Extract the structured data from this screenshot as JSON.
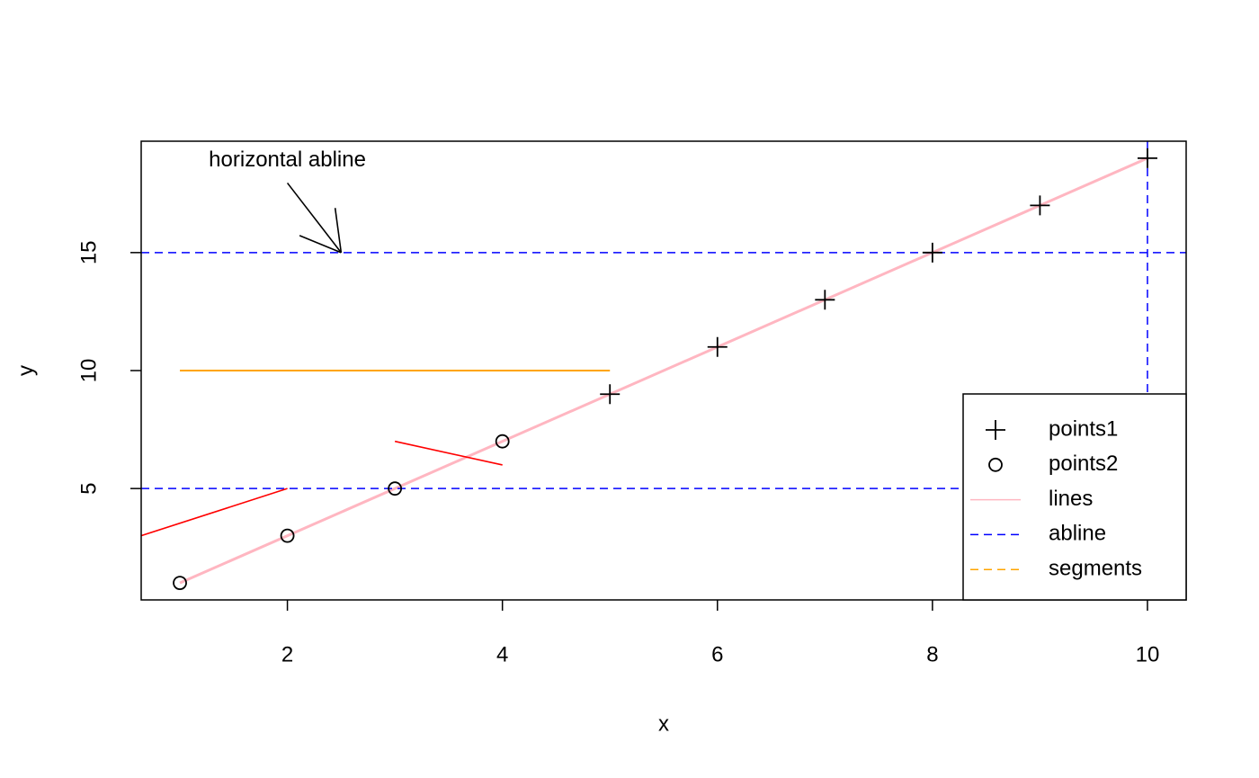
{
  "chart_data": {
    "type": "scatter",
    "x_label": "x",
    "y_label": "y",
    "xlim": [
      0.64,
      10.36
    ],
    "ylim": [
      0.28,
      19.72
    ],
    "xticks": [
      2,
      4,
      6,
      8,
      10
    ],
    "yticks": [
      5,
      10,
      15
    ],
    "legend": "bottomright",
    "series": [
      {
        "name": "points1",
        "color": "#000000",
        "marker": "plus",
        "x": [
          5,
          6,
          7,
          8,
          9,
          10
        ],
        "values": [
          9,
          11,
          13,
          15,
          17,
          19
        ]
      },
      {
        "name": "points2",
        "color": "#000000",
        "marker": "circle",
        "x": [
          1,
          2,
          3,
          4
        ],
        "values": [
          1,
          3,
          5,
          7
        ]
      },
      {
        "name": "lines",
        "color": "#ffb6c1",
        "x": [
          1,
          10
        ],
        "values": [
          1,
          19
        ]
      },
      {
        "name": "abline",
        "color": "#0000ff",
        "h": [
          15,
          5
        ],
        "v": [
          10
        ]
      },
      {
        "name": "segments",
        "color": "#ffa500",
        "x0": [
          1
        ],
        "y0": [
          10
        ],
        "x1": [
          5
        ],
        "y1": [
          10
        ]
      }
    ],
    "red_segments": {
      "color": "#ff0000",
      "x0": [
        0.64,
        3
      ],
      "y0": [
        3,
        7
      ],
      "x1": [
        2,
        4
      ],
      "y1": [
        5,
        6
      ]
    },
    "annotation": {
      "text": "horizontal abline",
      "x": 2,
      "y": 18.9,
      "arrow_from": [
        2,
        17.95
      ],
      "arrow_to": [
        2.5,
        15
      ]
    }
  }
}
